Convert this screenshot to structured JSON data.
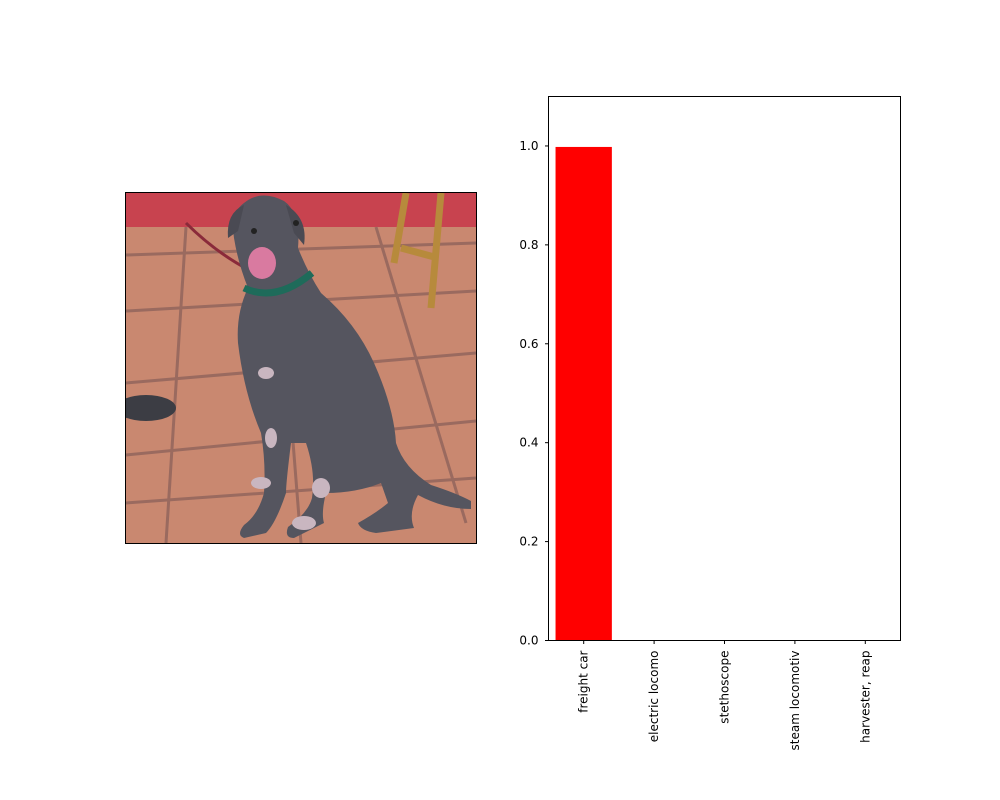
{
  "image_panel": {
    "icon": "photo-dog-icon",
    "colors": {
      "wall": "#c8434f",
      "floor": "#c98870",
      "grout": "#9a6a5f",
      "dog": "#55555f",
      "collar": "#1e6b5a",
      "tongue": "#d97aa0",
      "leash": "#8a2a3a",
      "chair": "#b78a3c"
    }
  },
  "chart_data": {
    "type": "bar",
    "categories": [
      "freight car",
      "electric locomo",
      "stethoscope",
      "steam locomotiv",
      "harvester, reap"
    ],
    "values": [
      0.998,
      0.001,
      0.0005,
      0.0003,
      0.0002
    ],
    "ylim": [
      0,
      1.1
    ],
    "yticks": [
      0.0,
      0.2,
      0.4,
      0.6,
      0.8,
      1.0
    ],
    "ytick_labels": [
      "0.0",
      "0.2",
      "0.4",
      "0.6",
      "0.8",
      "1.0"
    ],
    "bar_color": "#ff0000",
    "grid": false,
    "title": "",
    "xlabel": "",
    "ylabel": ""
  }
}
